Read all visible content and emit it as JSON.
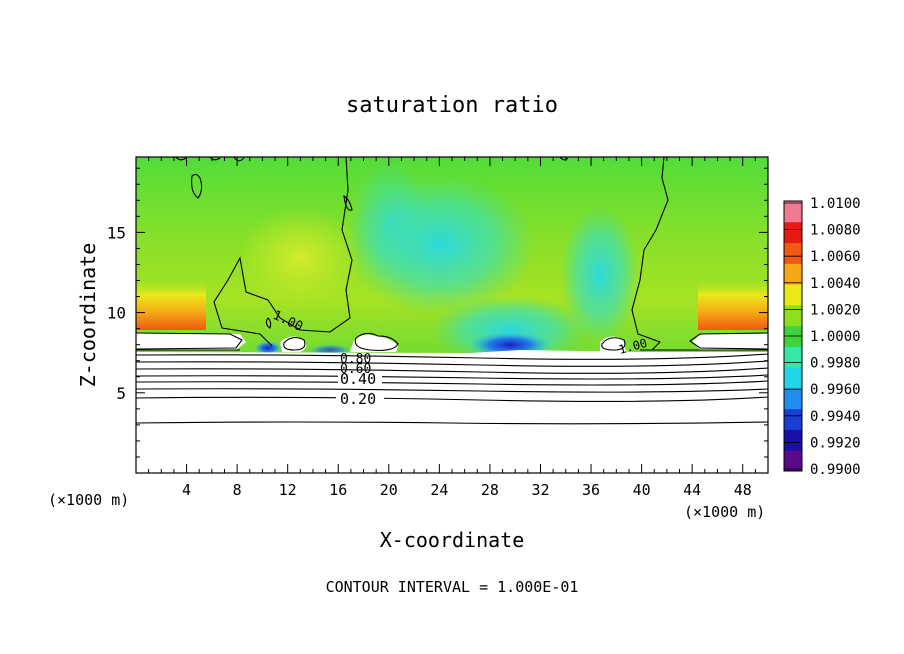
{
  "chart_data": {
    "type": "heatmap",
    "title": "saturation ratio",
    "xlabel": "X-coordinate",
    "ylabel": "Z-coordinate",
    "x_unit": "(×1000 m)",
    "y_unit": "(×1000 m)",
    "xlim": [
      0,
      50
    ],
    "ylim": [
      0,
      19.7
    ],
    "x_ticks": [
      4,
      8,
      12,
      16,
      20,
      24,
      28,
      32,
      36,
      40,
      44,
      48
    ],
    "y_ticks": [
      5,
      10,
      15
    ],
    "colorbar": {
      "min": 0.99,
      "max": 1.01,
      "labels": [
        "1.0100",
        "1.0080",
        "1.0060",
        "1.0040",
        "1.0020",
        "1.0000",
        "0.9980",
        "0.9960",
        "0.9940",
        "0.9920",
        "0.9900"
      ],
      "colors": [
        "#5a0a8a",
        "#1a10a8",
        "#1b3fd6",
        "#1e8fef",
        "#22d4e8",
        "#35e8a8",
        "#3ed43e",
        "#8ee01e",
        "#ece81a",
        "#f5a816",
        "#f05a12",
        "#e61a10",
        "#f07a90"
      ]
    },
    "contour_labels": [
      {
        "text": "0.20",
        "value": 0.2
      },
      {
        "text": "0.40",
        "value": 0.4
      },
      {
        "text": "0.60",
        "value": 0.6
      },
      {
        "text": "0.80",
        "value": 0.8
      },
      {
        "text": "1.00",
        "value": 1.0
      },
      {
        "text": "1.00",
        "value": 1.0
      }
    ],
    "contour_levels": [
      0.1,
      0.2,
      0.3,
      0.4,
      0.5,
      0.6,
      0.7,
      0.8,
      0.9,
      1.0
    ],
    "footer": "CONTOUR INTERVAL = 1.000E-01"
  }
}
